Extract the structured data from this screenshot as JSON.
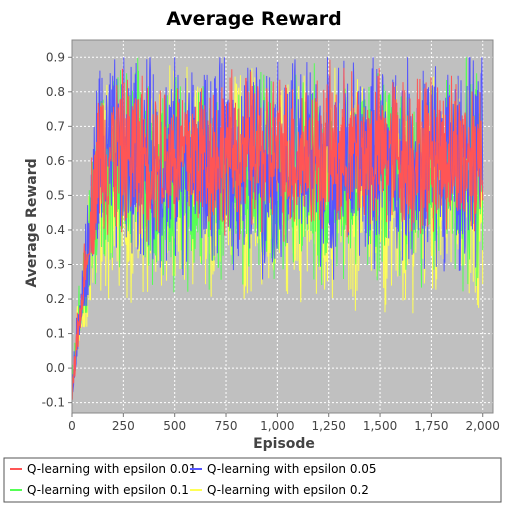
{
  "chart_data": {
    "type": "line",
    "title": "Average Reward",
    "xlabel": "Episode",
    "ylabel": "Average Reward",
    "xlim": [
      0,
      2050
    ],
    "ylim": [
      -0.13,
      0.95
    ],
    "x_ticks": [
      0,
      250,
      500,
      750,
      1000,
      1250,
      1500,
      1750,
      2000
    ],
    "x_tick_labels": [
      "0",
      "250",
      "500",
      "750",
      "1,000",
      "1,250",
      "1,500",
      "1,750",
      "2,000"
    ],
    "y_ticks": [
      -0.1,
      0.0,
      0.1,
      0.2,
      0.3,
      0.4,
      0.5,
      0.6,
      0.7,
      0.8,
      0.9
    ],
    "y_tick_labels": [
      "-0.1",
      "0.0",
      "0.1",
      "0.2",
      "0.3",
      "0.4",
      "0.5",
      "0.6",
      "0.7",
      "0.8",
      "0.9"
    ],
    "grid": true,
    "legend_position": "bottom",
    "background": "#c0c0c0",
    "episodes": 2000,
    "series": [
      {
        "name": "Q-learning with epsilon 0.2",
        "color": "#ffff55",
        "start": -0.05,
        "plateau": 0.52,
        "low": 0.14,
        "high": 0.9
      },
      {
        "name": "Q-learning with epsilon 0.1",
        "color": "#55ff55",
        "start": -0.05,
        "plateau": 0.56,
        "low": 0.18,
        "high": 0.9
      },
      {
        "name": "Q-learning with epsilon 0.05",
        "color": "#5555ff",
        "start": -0.07,
        "plateau": 0.6,
        "low": 0.2,
        "high": 0.9
      },
      {
        "name": "Q-learning with epsilon 0.01",
        "color": "#ff5555",
        "start": -0.08,
        "plateau": 0.62,
        "low": 0.35,
        "high": 0.9
      }
    ],
    "legend": [
      {
        "name": "Q-learning with epsilon 0.01",
        "color": "#ff5555"
      },
      {
        "name": "Q-learning with epsilon 0.05",
        "color": "#5555ff"
      },
      {
        "name": "Q-learning with epsilon 0.1",
        "color": "#55ff55"
      },
      {
        "name": "Q-learning with epsilon 0.2",
        "color": "#ffff55"
      }
    ]
  }
}
